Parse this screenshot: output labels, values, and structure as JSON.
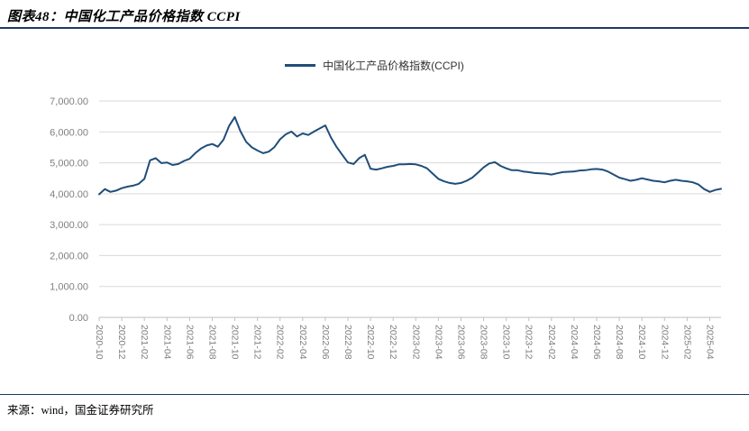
{
  "header": {
    "title": "图表48：中国化工产品价格指数 CCPI"
  },
  "legend": {
    "label": "中国化工产品价格指数(CCPI)"
  },
  "footer": {
    "source": "来源：wind，国金证券研究所"
  },
  "colors": {
    "line": "#1F4E79",
    "rule": "#1F3864",
    "grid": "#D9D9D9",
    "axis": "#BFBFBF",
    "axis_text": "#7F7F7F"
  },
  "chart_data": {
    "type": "line",
    "title": "图表48：中国化工产品价格指数 CCPI",
    "series_name": "中国化工产品价格指数(CCPI)",
    "legend_position": "top-center",
    "grid": "horizontal",
    "ylim": [
      0,
      7000
    ],
    "ytick_interval": 1000,
    "ytick_labels": [
      "0.00",
      "1,000.00",
      "2,000.00",
      "3,000.00",
      "4,000.00",
      "5,000.00",
      "6,000.00",
      "7,000.00"
    ],
    "xtick_labels": [
      "2020-10",
      "2020-12",
      "2021-02",
      "2021-04",
      "2021-06",
      "2021-08",
      "2021-10",
      "2021-12",
      "2022-02",
      "2022-04",
      "2022-06",
      "2022-08",
      "2022-10",
      "2022-12",
      "2023-02",
      "2023-04",
      "2023-06",
      "2023-08",
      "2023-10",
      "2023-12",
      "2024-02",
      "2024-04",
      "2024-06",
      "2024-08",
      "2024-10",
      "2024-12",
      "2025-02",
      "2025-04"
    ],
    "x_start": "2020-10",
    "x_end": "2025-05",
    "points_per_month": 2,
    "values": [
      3980,
      4150,
      4060,
      4100,
      4180,
      4230,
      4260,
      4320,
      4480,
      5080,
      5150,
      4990,
      5010,
      4930,
      4960,
      5060,
      5130,
      5310,
      5460,
      5560,
      5610,
      5520,
      5750,
      6200,
      6480,
      6020,
      5680,
      5500,
      5400,
      5310,
      5360,
      5510,
      5760,
      5920,
      6010,
      5850,
      5950,
      5900,
      6010,
      6110,
      6210,
      5820,
      5510,
      5260,
      5010,
      4960,
      5150,
      5260,
      4810,
      4780,
      4820,
      4870,
      4900,
      4950,
      4950,
      4960,
      4950,
      4900,
      4820,
      4650,
      4480,
      4400,
      4350,
      4320,
      4350,
      4420,
      4520,
      4680,
      4850,
      4980,
      5020,
      4900,
      4820,
      4760,
      4760,
      4720,
      4700,
      4670,
      4660,
      4650,
      4620,
      4660,
      4700,
      4710,
      4720,
      4750,
      4760,
      4790,
      4800,
      4780,
      4720,
      4620,
      4520,
      4470,
      4420,
      4450,
      4500,
      4460,
      4420,
      4400,
      4370,
      4420,
      4450,
      4420,
      4400,
      4370,
      4300,
      4150,
      4060,
      4120,
      4160
    ]
  }
}
